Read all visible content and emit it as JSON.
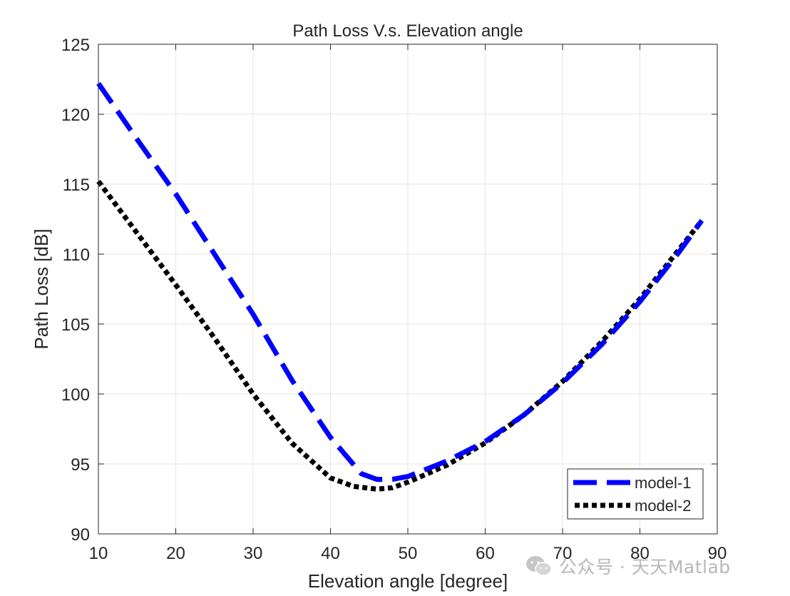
{
  "chart_data": {
    "type": "line",
    "title": "Path Loss V.s. Elevation angle",
    "xlabel": "Elevation angle [degree]",
    "ylabel": "Path Loss [dB]",
    "xlim": [
      10,
      90
    ],
    "ylim": [
      90,
      125
    ],
    "xticks": [
      10,
      20,
      30,
      40,
      50,
      60,
      70,
      80,
      90
    ],
    "yticks": [
      90,
      95,
      100,
      105,
      110,
      115,
      120,
      125
    ],
    "grid": true,
    "legend_position": "bottom-right",
    "series": [
      {
        "name": "model-1",
        "color": "#0000ff",
        "style": "dashed",
        "x": [
          10,
          15,
          20,
          25,
          30,
          35,
          40,
          44,
          46,
          48,
          50,
          55,
          60,
          65,
          70,
          75,
          80,
          85,
          88
        ],
        "y": [
          122.2,
          118.2,
          114.3,
          110.0,
          105.7,
          101.0,
          96.9,
          94.3,
          93.9,
          93.9,
          94.1,
          95.2,
          96.6,
          98.5,
          100.8,
          103.5,
          106.6,
          110.1,
          112.4
        ]
      },
      {
        "name": "model-2",
        "color": "#000000",
        "style": "dotted",
        "x": [
          10,
          15,
          20,
          25,
          30,
          35,
          40,
          43,
          46,
          48,
          50,
          55,
          60,
          65,
          70,
          75,
          80,
          85,
          88
        ],
        "y": [
          115.2,
          111.5,
          107.8,
          104.0,
          100.0,
          96.5,
          94.0,
          93.4,
          93.2,
          93.3,
          93.7,
          94.9,
          96.5,
          98.5,
          100.9,
          103.7,
          106.8,
          110.3,
          112.4
        ]
      }
    ]
  },
  "watermark": {
    "icon": "wechat-icon",
    "text": "公众号 · 天天Matlab"
  }
}
